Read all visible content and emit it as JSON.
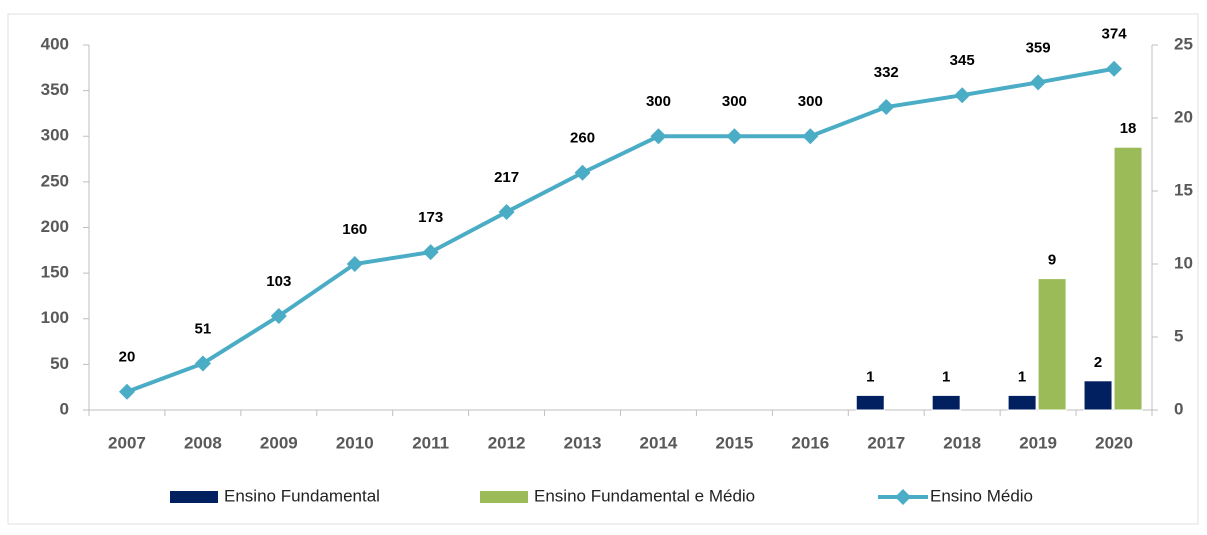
{
  "chart_data": {
    "type": "bar-line",
    "categories": [
      "2007",
      "2008",
      "2009",
      "2010",
      "2011",
      "2012",
      "2013",
      "2014",
      "2015",
      "2016",
      "2017",
      "2018",
      "2019",
      "2020"
    ],
    "series": [
      {
        "name": "Ensino Fundamental",
        "type": "bar",
        "axis": "y2",
        "color": "#002060",
        "values": [
          null,
          null,
          null,
          null,
          null,
          null,
          null,
          null,
          null,
          null,
          1,
          1,
          1,
          2
        ]
      },
      {
        "name": "Ensino Fundamental e Médio",
        "type": "bar",
        "axis": "y2",
        "color": "#9bbb59",
        "values": [
          null,
          null,
          null,
          null,
          null,
          null,
          null,
          null,
          null,
          null,
          null,
          null,
          9,
          18
        ]
      },
      {
        "name": "Ensino Médio",
        "type": "line",
        "axis": "y",
        "color": "#4bacc6",
        "values": [
          20,
          51,
          103,
          160,
          173,
          217,
          260,
          300,
          300,
          300,
          332,
          345,
          359,
          374
        ]
      }
    ],
    "ylim": [
      0,
      400
    ],
    "yticks": [
      0,
      50,
      100,
      150,
      200,
      250,
      300,
      350,
      400
    ],
    "y2lim": [
      0,
      25
    ],
    "y2ticks": [
      0,
      5,
      10,
      15,
      20,
      25
    ],
    "legend": "bottom"
  }
}
